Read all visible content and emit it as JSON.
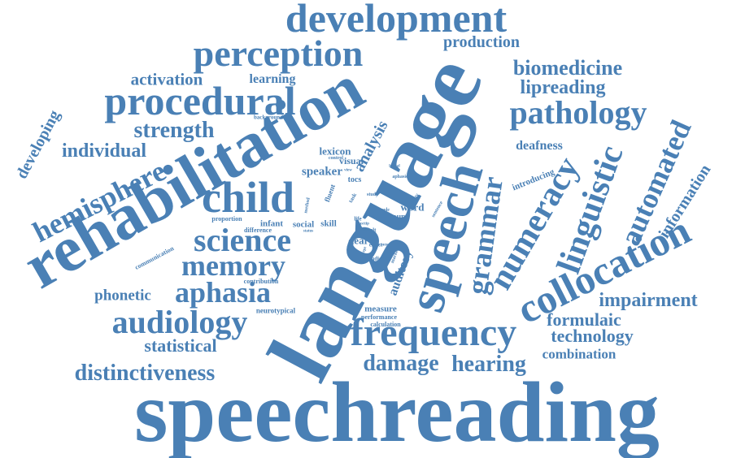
{
  "accent_color": "#4a80b5",
  "words": [
    "speechreading",
    "language",
    "rehabilitation",
    "speech",
    "development",
    "perception",
    "procedural",
    "frequency",
    "collocation",
    "child",
    "science",
    "memory",
    "aphasia",
    "audiology",
    "hemisphere",
    "pathology",
    "linguistic",
    "numeracy",
    "grammar",
    "automated",
    "distinctiveness",
    "damage",
    "hearing",
    "biomedicine",
    "lipreading",
    "impairment",
    "technology",
    "formulaic",
    "combination",
    "strength",
    "individual",
    "developing",
    "activation",
    "learning",
    "production",
    "information",
    "statistical",
    "phonetic",
    "deafness",
    "analysis",
    "introducing",
    "speaker",
    "auditory",
    "lexicon",
    "visual",
    "infant",
    "social",
    "skill",
    "deaf",
    "word",
    "group",
    "measure",
    "performance",
    "calculation",
    "neurotypical",
    "contribution",
    "difference",
    "communication",
    "proportion",
    "background",
    "fluent",
    "tocs",
    "result",
    "indicator",
    "effect",
    "life",
    "text",
    "study",
    "role",
    "task",
    "method",
    "aphasic",
    "ability",
    "sentence",
    "control",
    "marker",
    "status",
    "concept",
    "lexical",
    "view",
    "tip",
    "fast",
    "content"
  ]
}
